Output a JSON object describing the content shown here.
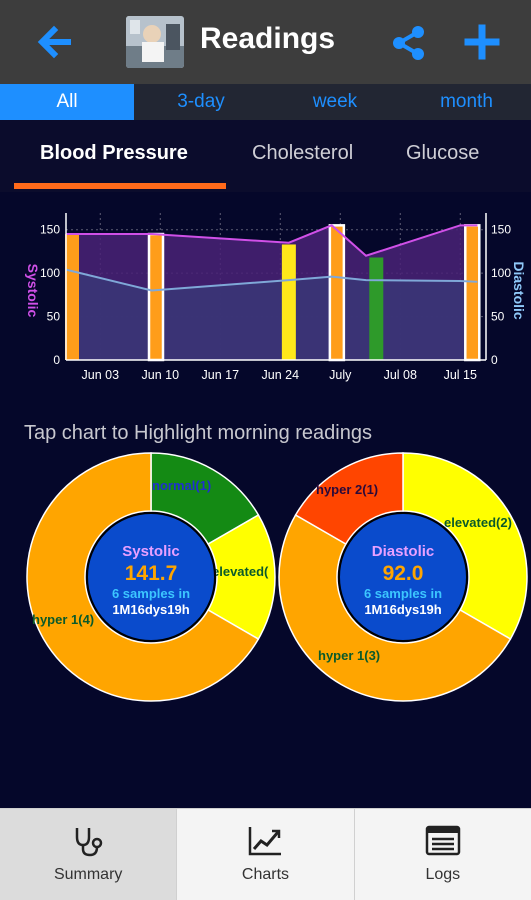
{
  "header": {
    "title": "Readings",
    "back_icon": "arrow-left-icon",
    "share_icon": "share-icon",
    "add_icon": "plus-icon",
    "accent": "#1e8fff"
  },
  "period_tabs": [
    {
      "label": "All",
      "active": true
    },
    {
      "label": "3-day",
      "active": false
    },
    {
      "label": "week",
      "active": false
    },
    {
      "label": "month",
      "active": false
    }
  ],
  "type_tabs": [
    {
      "label": "Blood Pressure",
      "active": true
    },
    {
      "label": "Cholesterol",
      "active": false
    },
    {
      "label": "Glucose",
      "active": false
    }
  ],
  "chart_data": {
    "type": "bar",
    "xlabel": "",
    "ylabel_left": "Systolic",
    "ylabel_right": "Diastolic",
    "ylim": [
      0,
      160
    ],
    "y_ticks": [
      "0",
      "50",
      "100",
      "150"
    ],
    "x_ticks": [
      {
        "label": "Jun 03",
        "day": 3
      },
      {
        "label": "Jun 10",
        "day": 10
      },
      {
        "label": "Jun 17",
        "day": 17
      },
      {
        "label": "Jun 24",
        "day": 24
      },
      {
        "label": "July",
        "day": 31
      },
      {
        "label": "Jul 08",
        "day": 38
      },
      {
        "label": "Jul 15",
        "day": 45
      }
    ],
    "x_range_days": [
      -1,
      48
    ],
    "systolic": [
      {
        "day": -1,
        "value": 145
      },
      {
        "day": 9,
        "value": 145
      },
      {
        "day": 25,
        "value": 135
      },
      {
        "day": 30,
        "value": 155
      },
      {
        "day": 34,
        "value": 120
      },
      {
        "day": 45,
        "value": 155
      },
      {
        "day": 47,
        "value": 155
      }
    ],
    "diastolic": [
      {
        "day": -1,
        "value": 104
      },
      {
        "day": 9,
        "value": 80
      },
      {
        "day": 25,
        "value": 92
      },
      {
        "day": 30,
        "value": 96
      },
      {
        "day": 34,
        "value": 92
      },
      {
        "day": 45,
        "value": 91
      },
      {
        "day": 47,
        "value": 90
      }
    ],
    "bars": [
      {
        "day": -0.3,
        "value": 145,
        "color": "#ff9d1a",
        "highlight": false
      },
      {
        "day": 9.5,
        "value": 145,
        "color": "#ff9d1a",
        "highlight": true
      },
      {
        "day": 25,
        "value": 133,
        "color": "#ffe81a",
        "highlight": false
      },
      {
        "day": 30.6,
        "value": 155,
        "color": "#ff9d1a",
        "highlight": true
      },
      {
        "day": 35.2,
        "value": 118,
        "color": "#2e9a2a",
        "highlight": false
      },
      {
        "day": 46.4,
        "value": 155,
        "color": "#ff9d1a",
        "highlight": true
      }
    ],
    "colors": {
      "systolic_line": "#d050e8",
      "diastolic_line": "#7fa8d8",
      "systolic_fill": "#4a2277",
      "diastolic_fill": "#3a3577",
      "left_axis_label": "#d050e8",
      "right_axis_label": "#8fc8f8"
    }
  },
  "hint": "Tap chart to Highlight morning readings",
  "donuts": [
    {
      "title": "Systolic",
      "value": "141.7",
      "samples": "6 samples in",
      "duration": "1M16dys19h",
      "title_color": "#e8a0ff",
      "segments": [
        {
          "label": "normal(1)",
          "fraction": 0.1667,
          "color": "#148a14",
          "text_color": "#1f2fd0"
        },
        {
          "label": "elevated(",
          "fraction": 0.1667,
          "color": "#ffff00",
          "text_color": "#0a5a2a"
        },
        {
          "label": "hyper 1(4)",
          "fraction": 0.6666,
          "color": "#ffa500",
          "text_color": "#0a5a2a"
        }
      ],
      "start_fraction": 0.0
    },
    {
      "title": "Diastolic",
      "value": "92.0",
      "samples": "6 samples in",
      "duration": "1M16dys19h",
      "title_color": "#e8a0ff",
      "segments": [
        {
          "label": "elevated(2)",
          "fraction": 0.3333,
          "color": "#ffff00",
          "text_color": "#0a5a2a"
        },
        {
          "label": "hyper 1(3)",
          "fraction": 0.5,
          "color": "#ffa500",
          "text_color": "#0a5a2a"
        },
        {
          "label": "hyper 2(1)",
          "fraction": 0.1667,
          "color": "#ff4500",
          "text_color": "#2a0a3a"
        }
      ],
      "start_fraction": 0.0
    }
  ],
  "donut_center": {
    "bg": "#0a4bcc",
    "value_color": "#ffa500",
    "samples_color": "#3cc6ff",
    "duration_color": "#ffffff"
  },
  "bottom_nav": [
    {
      "label": "Summary",
      "icon": "stethoscope-icon",
      "active": true
    },
    {
      "label": "Charts",
      "icon": "line-chart-icon",
      "active": false
    },
    {
      "label": "Logs",
      "icon": "list-icon",
      "active": false
    }
  ]
}
